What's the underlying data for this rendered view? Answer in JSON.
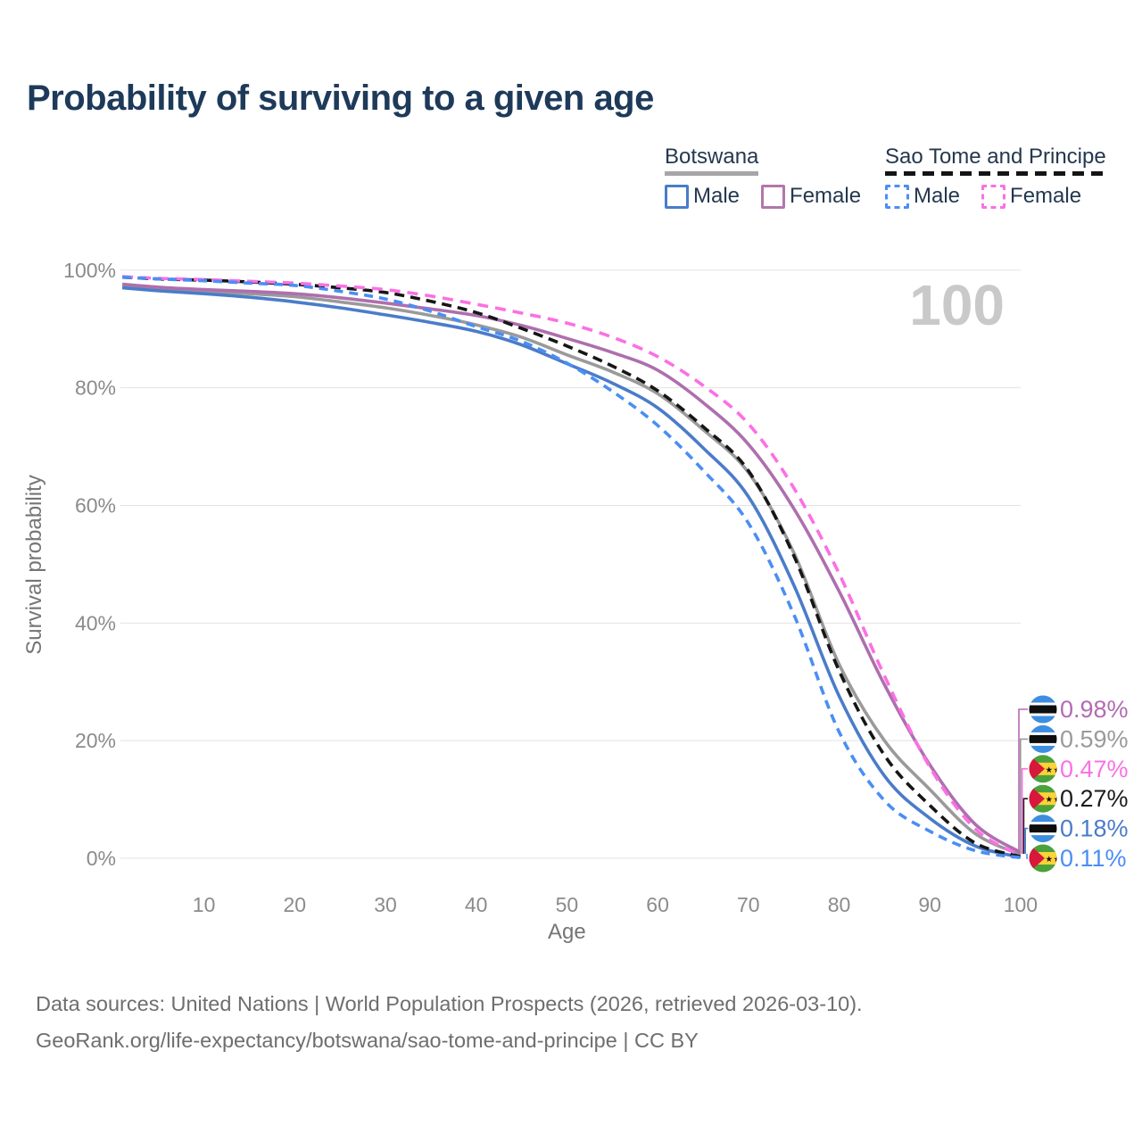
{
  "header": {
    "title": "Probability of surviving to a given age"
  },
  "legend": {
    "groups": [
      {
        "name": "Botswana",
        "line_style": "solid",
        "underline_color": "#a6a6a6",
        "items": [
          {
            "label": "Male",
            "color": "#4a7cc9",
            "dashed": false
          },
          {
            "label": "Female",
            "color": "#b277ab",
            "dashed": false
          }
        ]
      },
      {
        "name": "Sao Tome and Principe",
        "line_style": "dashed",
        "underline_color": "#141414",
        "items": [
          {
            "label": "Male",
            "color": "#4a8ef5",
            "dashed": true
          },
          {
            "label": "Female",
            "color": "#fb70e4",
            "dashed": true
          }
        ]
      }
    ]
  },
  "chart_data": {
    "type": "line",
    "title": "Probability of surviving to a given age",
    "xlabel": "Age",
    "ylabel": "Survival probability",
    "xlim": [
      1,
      100
    ],
    "ylim": [
      0,
      100
    ],
    "grid": "horizontal",
    "watermark": "100",
    "x_ticks": [
      {
        "value": 10,
        "label": "10"
      },
      {
        "value": 20,
        "label": "20"
      },
      {
        "value": 30,
        "label": "30"
      },
      {
        "value": 40,
        "label": "40"
      },
      {
        "value": 50,
        "label": "50"
      },
      {
        "value": 60,
        "label": "60"
      },
      {
        "value": 70,
        "label": "70"
      },
      {
        "value": 80,
        "label": "80"
      },
      {
        "value": 90,
        "label": "90"
      },
      {
        "value": 100,
        "label": "100"
      }
    ],
    "y_ticks": [
      {
        "value": 0,
        "label": "0%"
      },
      {
        "value": 20,
        "label": "20%"
      },
      {
        "value": 40,
        "label": "40%"
      },
      {
        "value": 60,
        "label": "60%"
      },
      {
        "value": 80,
        "label": "80%"
      },
      {
        "value": 100,
        "label": "100%"
      }
    ],
    "ages": [
      1,
      5,
      10,
      15,
      20,
      25,
      30,
      35,
      40,
      45,
      50,
      55,
      60,
      65,
      70,
      75,
      80,
      85,
      90,
      95,
      100
    ],
    "series": [
      {
        "name": "Botswana Total",
        "country": "Botswana",
        "sex": "Both",
        "color": "#9a9a9a",
        "dashed": false,
        "end_label": "0.59%",
        "values": [
          97.3,
          96.8,
          96.4,
          96.0,
          95.5,
          94.6,
          93.6,
          92.3,
          90.7,
          88.6,
          85.6,
          82.7,
          79.0,
          72.9,
          65.6,
          52.0,
          33.0,
          20.0,
          11.7,
          4.2,
          0.59
        ]
      },
      {
        "name": "Botswana Female",
        "country": "Botswana",
        "sex": "Female",
        "color": "#ae6fae",
        "dashed": false,
        "end_label": "0.98%",
        "values": [
          97.6,
          97.1,
          96.7,
          96.4,
          96.0,
          95.3,
          94.4,
          93.4,
          92.3,
          90.6,
          88.4,
          86.0,
          83.0,
          77.5,
          70.4,
          59.5,
          45.4,
          29.5,
          15.9,
          5.8,
          0.98
        ]
      },
      {
        "name": "Botswana Male",
        "country": "Botswana",
        "sex": "Male",
        "color": "#4a7cc9",
        "dashed": false,
        "end_label": "0.18%",
        "values": [
          97.0,
          96.5,
          96.0,
          95.4,
          94.6,
          93.6,
          92.4,
          91.1,
          89.6,
          87.3,
          84.1,
          80.8,
          76.6,
          69.8,
          61.5,
          46.5,
          27.6,
          14.0,
          6.8,
          2.1,
          0.18
        ]
      },
      {
        "name": "Sao Tome and Principe Total",
        "country": "Sao Tome and Principe",
        "sex": "Both",
        "color": "#161616",
        "dashed": true,
        "dash_pattern": "11 7",
        "end_label": "0.27%",
        "values": [
          98.8,
          98.5,
          98.3,
          98.0,
          97.6,
          97.0,
          96.2,
          94.7,
          92.8,
          90.1,
          87.1,
          83.7,
          79.5,
          73.4,
          65.9,
          51.5,
          31.9,
          17.5,
          9.0,
          2.6,
          0.27
        ]
      },
      {
        "name": "Sao Tome and Principe Female",
        "country": "Sao Tome and Principe",
        "sex": "Female",
        "color": "#fb70e4",
        "dashed": true,
        "dash_pattern": "12 8",
        "end_label": "0.47%",
        "values": [
          98.9,
          98.6,
          98.4,
          98.1,
          97.8,
          97.3,
          96.7,
          95.6,
          94.2,
          92.7,
          91.0,
          88.6,
          85.3,
          80.4,
          73.9,
          63.0,
          48.4,
          31.0,
          15.5,
          5.0,
          0.47
        ]
      },
      {
        "name": "Sao Tome and Principe Male",
        "country": "Sao Tome and Principe",
        "sex": "Male",
        "color": "#4a8ef5",
        "dashed": true,
        "dash_pattern": "10 7",
        "end_label": "0.11%",
        "values": [
          98.8,
          98.5,
          98.2,
          97.8,
          97.4,
          96.4,
          95.1,
          93.0,
          90.4,
          87.9,
          84.2,
          79.4,
          73.6,
          66.0,
          57.0,
          41.5,
          21.5,
          9.8,
          4.6,
          1.3,
          0.11
        ]
      }
    ],
    "end_annotations": [
      {
        "series": "Botswana Female",
        "flag": "botswana-flag",
        "label": "0.98%",
        "color": "#b36bb3"
      },
      {
        "series": "Botswana Total",
        "flag": "botswana-flag",
        "label": "0.59%",
        "color": "#9a9a9a"
      },
      {
        "series": "Sao Tome and Principe Female",
        "flag": "sao-tome-flag",
        "label": "0.47%",
        "color": "#fb70e4"
      },
      {
        "series": "Sao Tome and Principe Total",
        "flag": "sao-tome-flag",
        "label": "0.27%",
        "color": "#1c1c1c"
      },
      {
        "series": "Botswana Male",
        "flag": "botswana-flag",
        "label": "0.18%",
        "color": "#4a7cc9"
      },
      {
        "series": "Sao Tome and Principe Male",
        "flag": "sao-tome-flag",
        "label": "0.11%",
        "color": "#4a8ef5"
      }
    ]
  },
  "footer": {
    "line1": "Data sources: United Nations | World Population Prospects (2026, retrieved 2026-03-10).",
    "line2": "GeoRank.org/life-expectancy/botswana/sao-tome-and-principe | CC BY"
  }
}
